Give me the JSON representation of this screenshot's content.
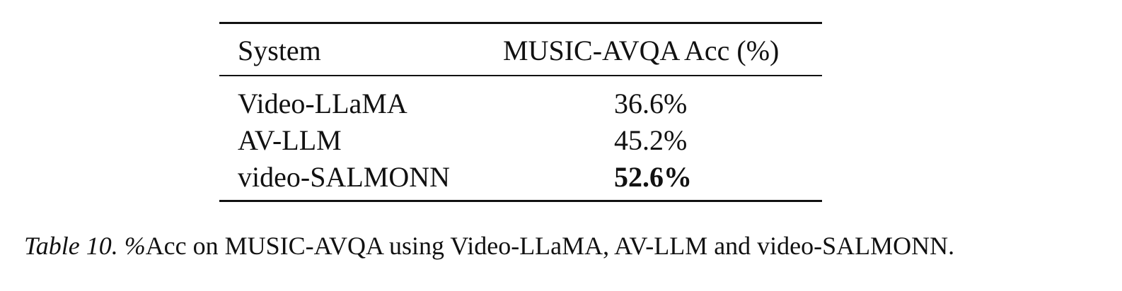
{
  "table": {
    "headers": [
      "System",
      "MUSIC-AVQA Acc (%)"
    ],
    "rows": [
      {
        "system": "Video-LLaMA",
        "acc": "36.6%",
        "bold": false
      },
      {
        "system": "AV-LLM",
        "acc": "45.2%",
        "bold": false
      },
      {
        "system": "video-SALMONN",
        "acc": "52.6%",
        "bold": true
      }
    ]
  },
  "caption": {
    "label": "Table 10. %",
    "text": "Acc on MUSIC-AVQA using Video-LLaMA, AV-LLM and video-SALMONN."
  }
}
